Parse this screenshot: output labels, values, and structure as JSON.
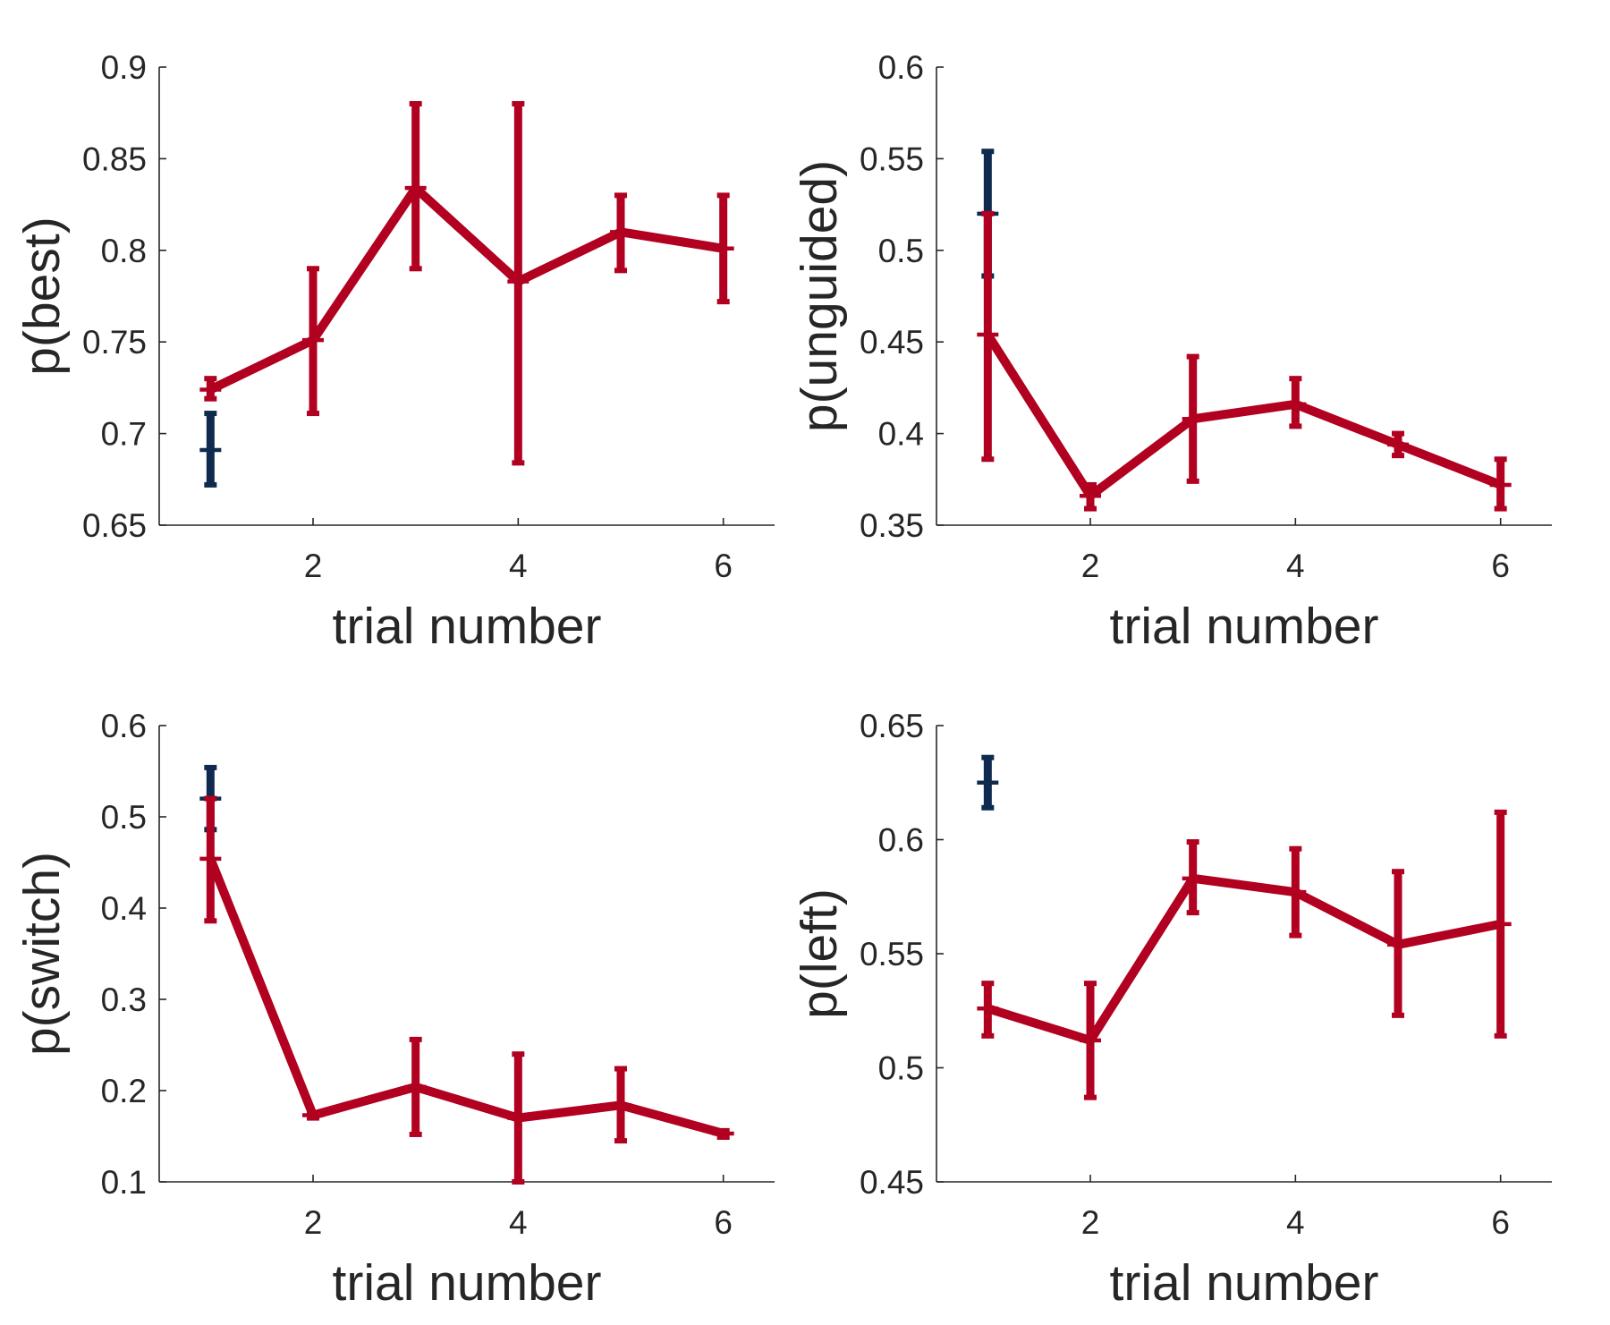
{
  "colors": {
    "main_series": "#B10020",
    "reference_series": "#0F2A4F",
    "axis": "#262626"
  },
  "chart_data": [
    {
      "type": "line",
      "xlabel": "trial number",
      "ylabel": "p(best)",
      "xlim": [
        0.5,
        6.5
      ],
      "ylim": [
        0.65,
        0.9
      ],
      "xticks": [
        "2",
        "4",
        "6"
      ],
      "yticks": [
        "0.65",
        "0.7",
        "0.75",
        "0.8",
        "0.85",
        "0.9"
      ],
      "grid": false,
      "series": [
        {
          "role": "main",
          "x": [
            1,
            2,
            3,
            4,
            5,
            6
          ],
          "y": [
            0.724,
            0.751,
            0.834,
            0.783,
            0.81,
            0.801
          ],
          "err_low": [
            0.719,
            0.711,
            0.79,
            0.684,
            0.789,
            0.772
          ],
          "err_high": [
            0.73,
            0.79,
            0.88,
            0.88,
            0.83,
            0.83
          ]
        },
        {
          "role": "reference",
          "x": [
            1
          ],
          "y": [
            0.691
          ],
          "err_low": [
            0.672
          ],
          "err_high": [
            0.711
          ]
        }
      ]
    },
    {
      "type": "line",
      "xlabel": "trial number",
      "ylabel": "p(unguided)",
      "xlim": [
        0.5,
        6.5
      ],
      "ylim": [
        0.35,
        0.6
      ],
      "xticks": [
        "2",
        "4",
        "6"
      ],
      "yticks": [
        "0.35",
        "0.4",
        "0.45",
        "0.5",
        "0.55",
        "0.6"
      ],
      "grid": false,
      "series": [
        {
          "role": "reference",
          "x": [
            1
          ],
          "y": [
            0.52
          ],
          "err_low": [
            0.486
          ],
          "err_high": [
            0.554
          ]
        },
        {
          "role": "main",
          "x": [
            1,
            2,
            3,
            4,
            5,
            6
          ],
          "y": [
            0.454,
            0.366,
            0.408,
            0.416,
            0.394,
            0.372
          ],
          "err_low": [
            0.386,
            0.359,
            0.374,
            0.404,
            0.388,
            0.359
          ],
          "err_high": [
            0.52,
            0.372,
            0.442,
            0.43,
            0.4,
            0.386
          ]
        }
      ]
    },
    {
      "type": "line",
      "xlabel": "trial number",
      "ylabel": "p(switch)",
      "xlim": [
        0.5,
        6.5
      ],
      "ylim": [
        0.1,
        0.6
      ],
      "xticks": [
        "2",
        "4",
        "6"
      ],
      "yticks": [
        "0.1",
        "0.2",
        "0.3",
        "0.4",
        "0.5",
        "0.6"
      ],
      "grid": false,
      "series": [
        {
          "role": "reference",
          "x": [
            1
          ],
          "y": [
            0.52
          ],
          "err_low": [
            0.486
          ],
          "err_high": [
            0.554
          ]
        },
        {
          "role": "main",
          "x": [
            1,
            2,
            3,
            4,
            5,
            6
          ],
          "y": [
            0.454,
            0.173,
            0.204,
            0.17,
            0.184,
            0.153
          ],
          "err_low": [
            0.386,
            0.17,
            0.152,
            0.1,
            0.145,
            0.149
          ],
          "err_high": [
            0.52,
            0.176,
            0.256,
            0.24,
            0.224,
            0.156
          ]
        }
      ]
    },
    {
      "type": "line",
      "xlabel": "trial number",
      "ylabel": "p(left)",
      "xlim": [
        0.5,
        6.5
      ],
      "ylim": [
        0.45,
        0.65
      ],
      "xticks": [
        "2",
        "4",
        "6"
      ],
      "yticks": [
        "0.45",
        "0.5",
        "0.55",
        "0.6",
        "0.65"
      ],
      "grid": false,
      "series": [
        {
          "role": "reference",
          "x": [
            1
          ],
          "y": [
            0.625
          ],
          "err_low": [
            0.614
          ],
          "err_high": [
            0.636
          ]
        },
        {
          "role": "main",
          "x": [
            1,
            2,
            3,
            4,
            5,
            6
          ],
          "y": [
            0.526,
            0.512,
            0.583,
            0.577,
            0.554,
            0.563
          ],
          "err_low": [
            0.514,
            0.487,
            0.568,
            0.558,
            0.523,
            0.514
          ],
          "err_high": [
            0.537,
            0.537,
            0.599,
            0.596,
            0.586,
            0.612
          ]
        }
      ]
    }
  ]
}
